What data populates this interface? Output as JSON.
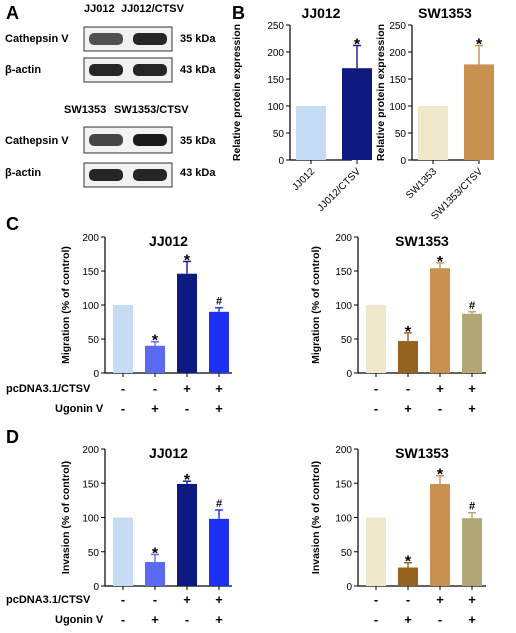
{
  "panel_letters": [
    "A",
    "B",
    "C",
    "D"
  ],
  "blots": [
    {
      "lanes": [
        "JJ012",
        "JJ012/CTSV"
      ],
      "rows": [
        {
          "label": "Cathepsin V",
          "kda": "35 kDa",
          "intensity": [
            0.75,
            0.95
          ]
        },
        {
          "label": "β-actin",
          "kda": "43 kDa",
          "intensity": [
            0.95,
            0.95
          ]
        }
      ]
    },
    {
      "lanes": [
        "SW1353",
        "SW1353/CTSV"
      ],
      "rows": [
        {
          "label": "Cathepsin V",
          "kda": "35 kDa",
          "intensity": [
            0.8,
            1.0
          ]
        },
        {
          "label": "β-actin",
          "kda": "43 kDa",
          "intensity": [
            0.95,
            0.95
          ]
        }
      ]
    }
  ],
  "treatment_rows": {
    "pcdna": {
      "label": "pcDNA3.1/CTSV",
      "signs": [
        "-",
        "-",
        "+",
        "+"
      ]
    },
    "ugonin": {
      "label": "Ugonin V",
      "signs": [
        "-",
        "+",
        "-",
        "+"
      ]
    }
  },
  "chart_data": [
    {
      "type": "bar",
      "panel": "B",
      "title": "JJ012",
      "ylabel": "Relative protein expression",
      "ylim": [
        0,
        250
      ],
      "yticks": [
        0,
        50,
        100,
        150,
        200,
        250
      ],
      "categories": [
        "JJ012",
        "JJ012/CTSV"
      ],
      "values": [
        100,
        170
      ],
      "errors": [
        0,
        42
      ],
      "annotations": [
        "",
        "*"
      ],
      "colors": [
        "#c6dcf5",
        "#0f1a80"
      ]
    },
    {
      "type": "bar",
      "panel": "B",
      "title": "SW1353",
      "ylabel": "Relative protein expression",
      "ylim": [
        0,
        250
      ],
      "yticks": [
        0,
        50,
        100,
        150,
        200,
        250
      ],
      "categories": [
        "SW1353",
        "SW1353/CTSV"
      ],
      "values": [
        100,
        177
      ],
      "errors": [
        0,
        35
      ],
      "annotations": [
        "",
        "*"
      ],
      "colors": [
        "#efe8cc",
        "#c8914f"
      ]
    },
    {
      "type": "bar",
      "panel": "C",
      "title": "JJ012",
      "ylabel": "Migration (% of control)",
      "ylim": [
        0,
        200
      ],
      "yticks": [
        0,
        50,
        100,
        150,
        200
      ],
      "values": [
        100,
        40,
        146,
        90
      ],
      "errors": [
        0,
        6,
        18,
        6
      ],
      "annotations": [
        "",
        "*",
        "*",
        "#"
      ],
      "colors": [
        "#c6dcf5",
        "#5a6af2",
        "#0f1a80",
        "#1f31f0"
      ]
    },
    {
      "type": "bar",
      "panel": "C",
      "title": "SW1353",
      "ylabel": "Migration (% of control)",
      "ylim": [
        0,
        200
      ],
      "yticks": [
        0,
        50,
        100,
        150,
        200
      ],
      "values": [
        100,
        47,
        154,
        87
      ],
      "errors": [
        0,
        12,
        8,
        3
      ],
      "annotations": [
        "",
        "*",
        "*",
        "#"
      ],
      "colors": [
        "#efe8cc",
        "#946320",
        "#c8914f",
        "#b0a676"
      ]
    },
    {
      "type": "bar",
      "panel": "D",
      "title": "JJ012",
      "ylabel": "Invasion (% of control)",
      "ylim": [
        0,
        200
      ],
      "yticks": [
        0,
        50,
        100,
        150,
        200
      ],
      "values": [
        100,
        35,
        149,
        98
      ],
      "errors": [
        0,
        11,
        4,
        13
      ],
      "annotations": [
        "",
        "*",
        "*",
        "#"
      ],
      "colors": [
        "#c6dcf5",
        "#5a6af2",
        "#0f1a80",
        "#1f31f0"
      ]
    },
    {
      "type": "bar",
      "panel": "D",
      "title": "SW1353",
      "ylabel": "Invasion (% of control)",
      "ylim": [
        0,
        200
      ],
      "yticks": [
        0,
        50,
        100,
        150,
        200
      ],
      "values": [
        100,
        27,
        149,
        99
      ],
      "errors": [
        0,
        7,
        12,
        8
      ],
      "annotations": [
        "",
        "*",
        "*",
        "#"
      ],
      "colors": [
        "#efe8cc",
        "#946320",
        "#c8914f",
        "#b0a676"
      ]
    }
  ]
}
